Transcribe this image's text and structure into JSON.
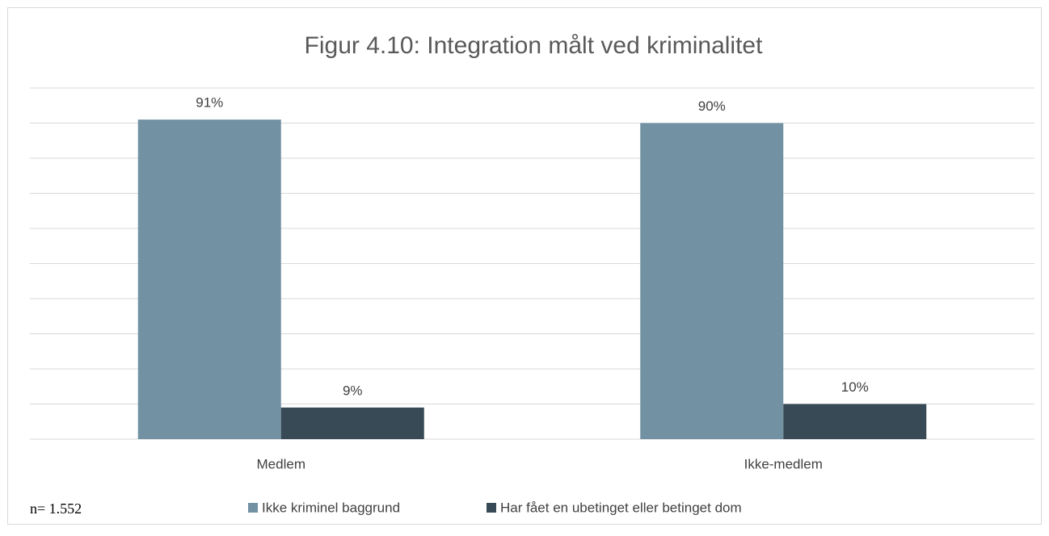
{
  "chart_data": {
    "type": "bar",
    "title": "Figur 4.10: Integration målt ved kriminalitet",
    "categories": [
      "Medlem",
      "Ikke-medlem"
    ],
    "series": [
      {
        "name": "Ikke kriminel baggrund",
        "color": "#7291a3",
        "values": [
          91,
          90
        ],
        "value_labels": [
          "91%",
          "90%"
        ]
      },
      {
        "name": "Har fået en ubetinget eller betinget dom",
        "color": "#374a55",
        "values": [
          9,
          10
        ],
        "value_labels": [
          "9%",
          "10%"
        ]
      }
    ],
    "ylim": [
      0,
      100
    ],
    "yticks": [
      0,
      10,
      20,
      30,
      40,
      50,
      60,
      70,
      80,
      90,
      100
    ],
    "grid": true,
    "annotation": "n= 1.552"
  }
}
